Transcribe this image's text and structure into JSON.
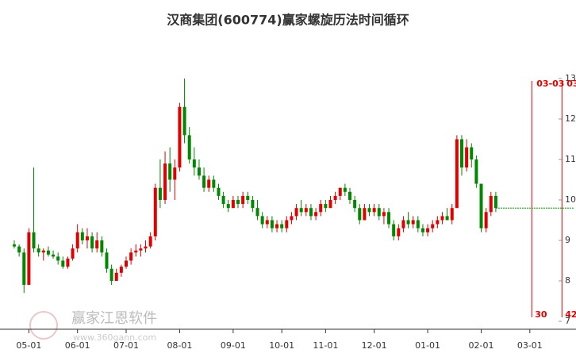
{
  "chart_data": {
    "type": "candlestick",
    "title": "汉商集团(600774)赢家螺旋历法时间循环",
    "watermark": "赢家江恩软件",
    "watermark_url": "www.360gann.com",
    "up_color": "#e00000",
    "down_color": "#008800",
    "ylim": [
      7,
      13
    ],
    "yticks": [
      7,
      8,
      9,
      10,
      11,
      12,
      13
    ],
    "xlim": [
      0,
      115
    ],
    "xticks": [
      {
        "value": 3,
        "label": "05-01"
      },
      {
        "value": 13,
        "label": "06-01"
      },
      {
        "value": 23,
        "label": "07-01"
      },
      {
        "value": 34,
        "label": "08-01"
      },
      {
        "value": 45,
        "label": "09-01"
      },
      {
        "value": 55,
        "label": "10-01"
      },
      {
        "value": 64,
        "label": "11-01"
      },
      {
        "value": 74,
        "label": "12-01"
      },
      {
        "value": 85,
        "label": "01-01"
      },
      {
        "value": 96,
        "label": "02-01"
      },
      {
        "value": 106,
        "label": "03-01"
      }
    ],
    "cycle_lines": [
      {
        "x": 106.4,
        "top_label": "03-03",
        "bottom_label": "30"
      },
      {
        "x": 112.6,
        "top_label": "03",
        "bottom_label": "42"
      }
    ],
    "ohlc": [
      [
        8.9,
        9.0,
        8.8,
        8.85
      ],
      [
        8.85,
        8.9,
        8.6,
        8.7
      ],
      [
        8.7,
        8.8,
        7.7,
        7.9
      ],
      [
        7.9,
        9.3,
        7.9,
        9.2
      ],
      [
        9.2,
        10.8,
        8.7,
        8.8
      ],
      [
        8.8,
        8.9,
        8.6,
        8.7
      ],
      [
        8.7,
        8.8,
        8.5,
        8.75
      ],
      [
        8.75,
        8.85,
        8.6,
        8.65
      ],
      [
        8.65,
        8.75,
        8.55,
        8.6
      ],
      [
        8.6,
        8.7,
        8.4,
        8.5
      ],
      [
        8.5,
        8.6,
        8.3,
        8.35
      ],
      [
        8.35,
        8.6,
        8.3,
        8.55
      ],
      [
        8.55,
        8.9,
        8.5,
        8.8
      ],
      [
        8.8,
        9.4,
        8.7,
        9.2
      ],
      [
        9.2,
        9.3,
        8.9,
        9.0
      ],
      [
        9.0,
        9.3,
        8.8,
        9.1
      ],
      [
        9.1,
        9.2,
        8.7,
        8.8
      ],
      [
        8.8,
        9.2,
        8.7,
        9.0
      ],
      [
        9.0,
        9.1,
        8.6,
        8.7
      ],
      [
        8.7,
        8.8,
        8.2,
        8.3
      ],
      [
        8.3,
        8.4,
        7.9,
        8.0
      ],
      [
        8.0,
        8.3,
        8.0,
        8.2
      ],
      [
        8.2,
        8.4,
        8.1,
        8.35
      ],
      [
        8.35,
        8.6,
        8.3,
        8.5
      ],
      [
        8.5,
        8.8,
        8.4,
        8.7
      ],
      [
        8.7,
        8.9,
        8.6,
        8.75
      ],
      [
        8.75,
        8.9,
        8.6,
        8.8
      ],
      [
        8.8,
        9.0,
        8.7,
        8.85
      ],
      [
        8.85,
        9.2,
        8.8,
        9.1
      ],
      [
        9.1,
        10.4,
        9.0,
        10.3
      ],
      [
        10.3,
        11.0,
        9.8,
        10.0
      ],
      [
        10.0,
        11.2,
        9.9,
        10.9
      ],
      [
        10.9,
        11.3,
        10.2,
        10.5
      ],
      [
        10.5,
        11.0,
        10.0,
        10.8
      ],
      [
        10.8,
        12.4,
        10.7,
        12.3
      ],
      [
        12.3,
        13.0,
        11.4,
        11.6
      ],
      [
        11.6,
        11.8,
        10.9,
        11.0
      ],
      [
        11.0,
        11.3,
        10.6,
        10.8
      ],
      [
        10.8,
        11.0,
        10.5,
        10.6
      ],
      [
        10.6,
        10.8,
        10.2,
        10.3
      ],
      [
        10.3,
        10.6,
        10.2,
        10.5
      ],
      [
        10.5,
        10.6,
        10.2,
        10.3
      ],
      [
        10.3,
        10.4,
        10.0,
        10.1
      ],
      [
        10.1,
        10.2,
        9.8,
        9.9
      ],
      [
        9.9,
        10.0,
        9.7,
        9.8
      ],
      [
        9.8,
        10.1,
        9.8,
        10.0
      ],
      [
        10.0,
        10.1,
        9.8,
        9.9
      ],
      [
        9.9,
        10.2,
        9.8,
        10.1
      ],
      [
        10.1,
        10.2,
        9.9,
        10.0
      ],
      [
        10.0,
        10.1,
        9.7,
        9.8
      ],
      [
        9.8,
        10.0,
        9.5,
        9.6
      ],
      [
        9.6,
        9.7,
        9.3,
        9.4
      ],
      [
        9.4,
        9.6,
        9.3,
        9.5
      ],
      [
        9.5,
        9.6,
        9.2,
        9.3
      ],
      [
        9.3,
        9.5,
        9.2,
        9.4
      ],
      [
        9.4,
        9.5,
        9.2,
        9.3
      ],
      [
        9.3,
        9.6,
        9.2,
        9.5
      ],
      [
        9.5,
        9.7,
        9.4,
        9.6
      ],
      [
        9.6,
        9.9,
        9.5,
        9.8
      ],
      [
        9.8,
        10.0,
        9.6,
        9.7
      ],
      [
        9.7,
        9.9,
        9.6,
        9.8
      ],
      [
        9.8,
        9.9,
        9.5,
        9.6
      ],
      [
        9.6,
        9.8,
        9.5,
        9.7
      ],
      [
        9.7,
        10.0,
        9.6,
        9.9
      ],
      [
        9.9,
        10.0,
        9.7,
        9.8
      ],
      [
        9.8,
        10.1,
        9.8,
        10.0
      ],
      [
        10.0,
        10.2,
        9.9,
        10.1
      ],
      [
        10.1,
        10.3,
        10.0,
        10.3
      ],
      [
        10.3,
        10.4,
        10.1,
        10.2
      ],
      [
        10.2,
        10.3,
        9.9,
        10.0
      ],
      [
        10.0,
        10.1,
        9.7,
        9.8
      ],
      [
        9.8,
        9.9,
        9.4,
        9.5
      ],
      [
        9.5,
        9.9,
        9.5,
        9.8
      ],
      [
        9.8,
        9.9,
        9.6,
        9.7
      ],
      [
        9.7,
        9.9,
        9.6,
        9.8
      ],
      [
        9.8,
        9.9,
        9.5,
        9.6
      ],
      [
        9.6,
        9.8,
        9.4,
        9.7
      ],
      [
        9.7,
        9.8,
        9.3,
        9.4
      ],
      [
        9.4,
        9.5,
        9.0,
        9.1
      ],
      [
        9.1,
        9.4,
        9.0,
        9.3
      ],
      [
        9.3,
        9.6,
        9.2,
        9.5
      ],
      [
        9.5,
        9.7,
        9.3,
        9.4
      ],
      [
        9.4,
        9.6,
        9.3,
        9.5
      ],
      [
        9.5,
        9.6,
        9.2,
        9.3
      ],
      [
        9.3,
        9.4,
        9.1,
        9.2
      ],
      [
        9.2,
        9.4,
        9.1,
        9.3
      ],
      [
        9.3,
        9.5,
        9.2,
        9.4
      ],
      [
        9.4,
        9.6,
        9.3,
        9.5
      ],
      [
        9.5,
        9.7,
        9.4,
        9.6
      ],
      [
        9.6,
        9.8,
        9.5,
        9.5
      ],
      [
        9.5,
        9.9,
        9.4,
        9.8
      ],
      [
        9.8,
        11.6,
        9.8,
        11.5
      ],
      [
        11.5,
        11.6,
        10.6,
        10.8
      ],
      [
        10.8,
        11.5,
        10.7,
        11.3
      ],
      [
        11.3,
        11.4,
        10.8,
        11.0
      ],
      [
        11.0,
        11.1,
        10.3,
        10.4
      ],
      [
        10.4,
        10.4,
        9.2,
        9.3
      ],
      [
        9.3,
        9.8,
        9.2,
        9.7
      ],
      [
        9.7,
        10.2,
        9.6,
        10.1
      ],
      [
        10.1,
        10.2,
        9.7,
        9.8
      ]
    ]
  }
}
